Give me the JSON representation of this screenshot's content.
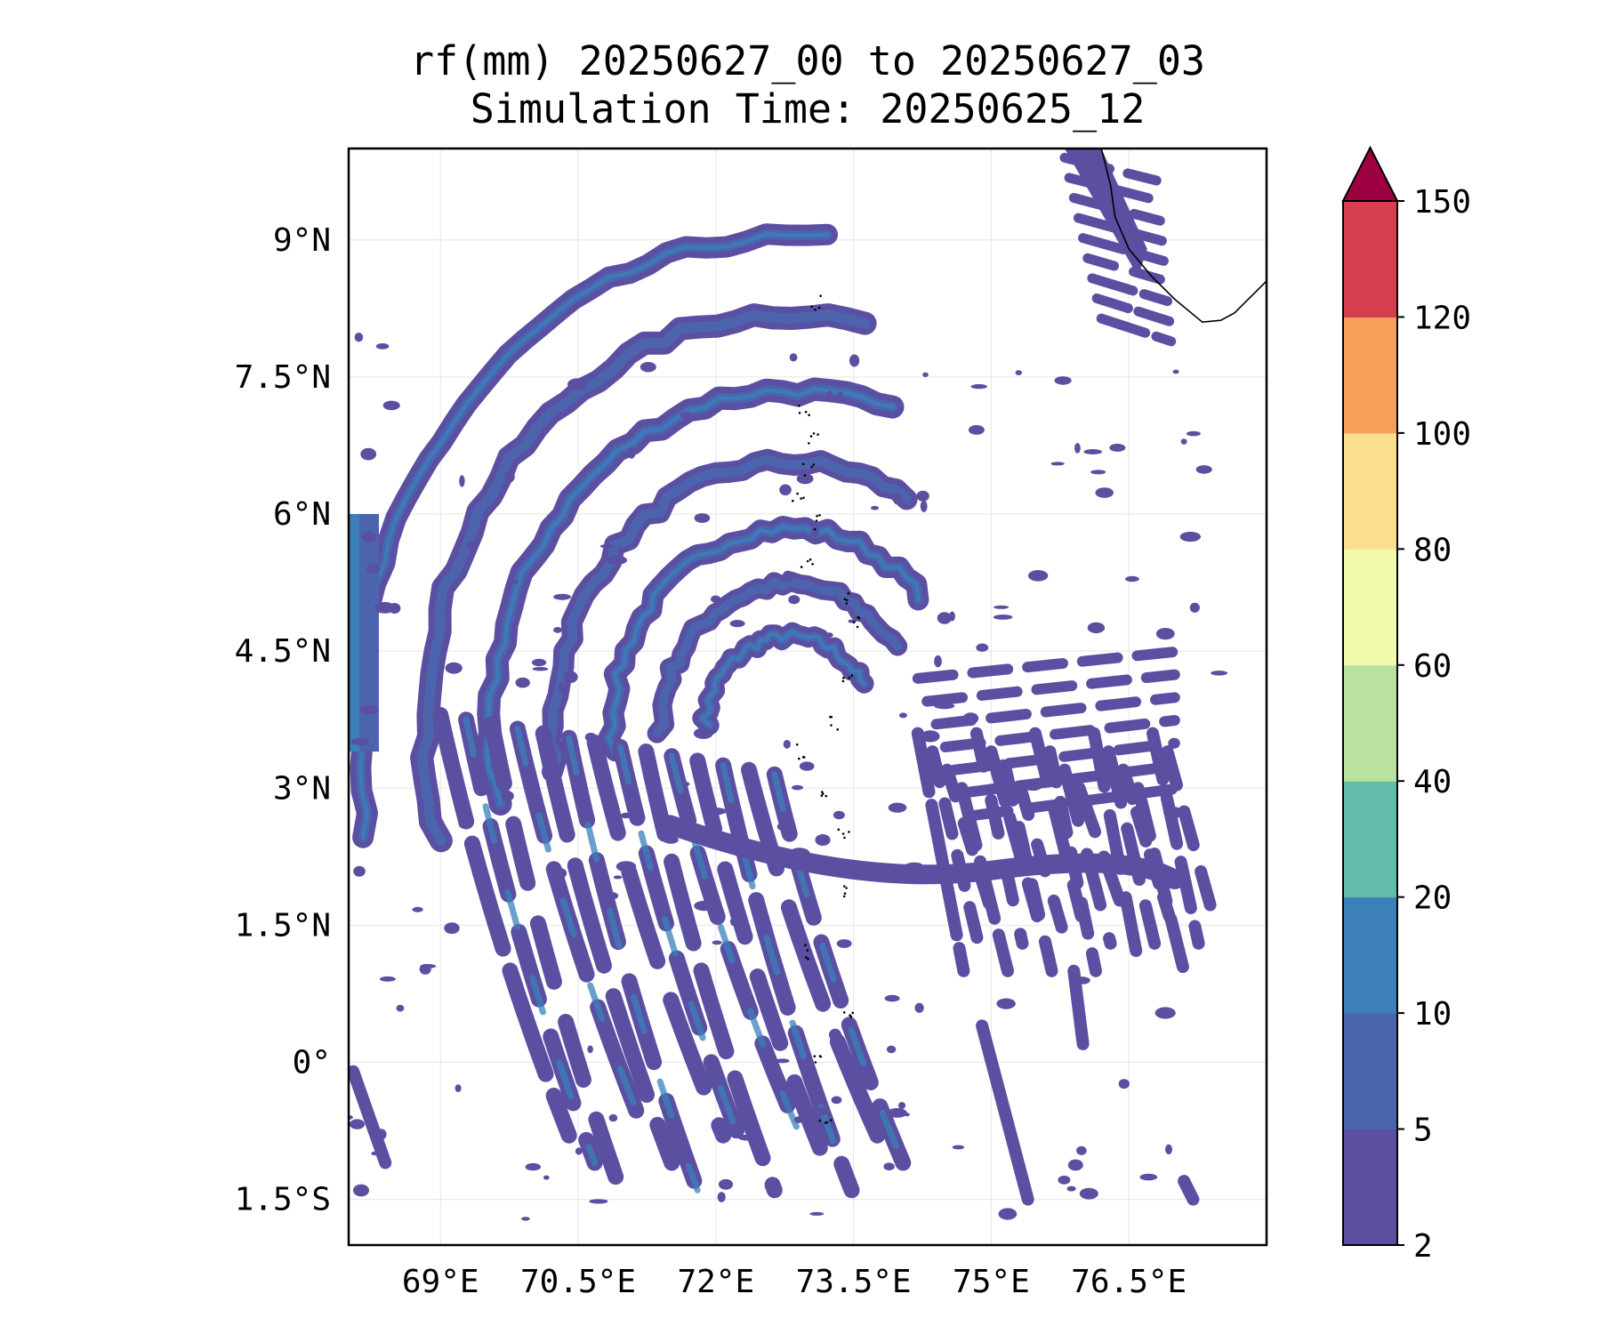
{
  "title_line_1": "rf(mm) 20250627_00 to 20250627_03",
  "title_line_2": "Simulation Time: 20250625_12",
  "map": {
    "lon_range": [
      68.0,
      78.0
    ],
    "lat_range": [
      -2.0,
      10.0
    ],
    "xticks": [
      {
        "value": 69.0,
        "label": "69°E"
      },
      {
        "value": 70.5,
        "label": "70.5°E"
      },
      {
        "value": 72.0,
        "label": "72°E"
      },
      {
        "value": 73.5,
        "label": "73.5°E"
      },
      {
        "value": 75.0,
        "label": "75°E"
      },
      {
        "value": 76.5,
        "label": "76.5°E"
      }
    ],
    "yticks": [
      {
        "value": 9.0,
        "label": "9°N"
      },
      {
        "value": 7.5,
        "label": "7.5°N"
      },
      {
        "value": 6.0,
        "label": "6°N"
      },
      {
        "value": 4.5,
        "label": "4.5°N"
      },
      {
        "value": 3.0,
        "label": "3°N"
      },
      {
        "value": 1.5,
        "label": "1.5°N"
      },
      {
        "value": 0.0,
        "label": "0°"
      },
      {
        "value": -1.5,
        "label": "1.5°S"
      }
    ],
    "gridlines": true,
    "coastline": "India southwest tip (Kerala), Maldives atolls",
    "rainfall_bands": [
      {
        "lon": [
          69.2,
          71.5
        ],
        "lat": [
          4.2,
          7.3
        ],
        "level": "2-5"
      },
      {
        "lon": [
          70.3,
          72.8
        ],
        "lat": [
          -1.2,
          4.0
        ],
        "level": "2-10"
      },
      {
        "lon": [
          71.5,
          73.2
        ],
        "lat": [
          3.5,
          5.8
        ],
        "level": "2-10"
      },
      {
        "lon": [
          73.0,
          77.2
        ],
        "lat": [
          0.5,
          4.3
        ],
        "level": "2-5"
      },
      {
        "lon": [
          75.8,
          77.2
        ],
        "lat": [
          7.9,
          10.0
        ],
        "level": "2-5"
      }
    ]
  },
  "colorbar": {
    "extend": "max",
    "levels": [
      2,
      5,
      10,
      20,
      40,
      60,
      80,
      100,
      120,
      150
    ],
    "tick_labels": [
      "2",
      "5",
      "10",
      "20",
      "40",
      "60",
      "80",
      "100",
      "120",
      "150"
    ],
    "colors": [
      "#5a4fa1",
      "#4c64ad",
      "#3b80bb",
      "#63bcaa",
      "#b9e29f",
      "#f2f9ad",
      "#fbdf8e",
      "#f89e5b",
      "#d43e4f",
      "#9e0142"
    ]
  },
  "colors": {
    "rain_low": "#5a4fa1",
    "rain_mid": "#4c64ad",
    "rain_high": "#3b80bb",
    "coastline": "#000000",
    "grid": "#e6e6e6"
  }
}
